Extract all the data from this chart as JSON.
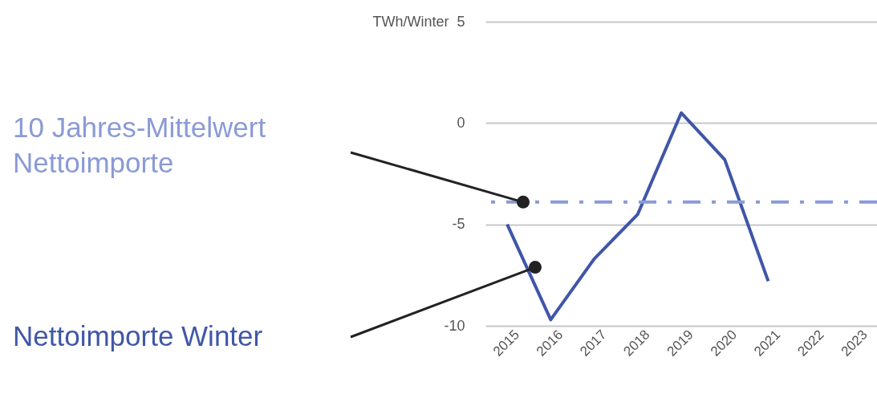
{
  "chart_data": {
    "type": "line",
    "ylabel": "TWh/Winter",
    "categories": [
      "2015",
      "2016",
      "2017",
      "2018",
      "2019",
      "2020",
      "2021",
      "2022",
      "2023"
    ],
    "series": [
      {
        "name": "Nettoimporte Winter",
        "color": "#3f56a8",
        "values": [
          -5.0,
          -9.7,
          -6.7,
          -4.5,
          0.5,
          -1.8,
          -7.8,
          null,
          null
        ]
      }
    ],
    "ylim": [
      -10,
      5
    ],
    "yticks": [
      -10,
      -5,
      0,
      5
    ],
    "grid": "y",
    "marker": "none",
    "line_style": "solid",
    "ref_lines": [
      {
        "axis": "y",
        "value": -3.9,
        "label": "10 Jahres-Mittelwert Nettoimporte",
        "color": "#8a9ad6",
        "line_style": "dashed"
      }
    ]
  }
}
